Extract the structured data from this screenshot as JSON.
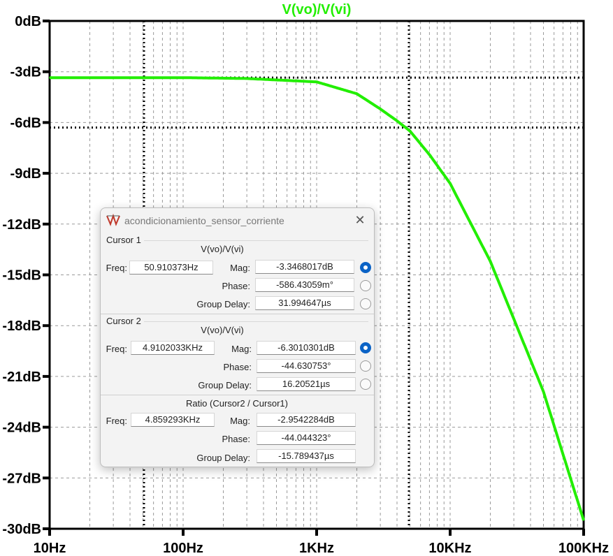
{
  "chart_data": {
    "type": "line",
    "title": "V(vo)/V(vi)",
    "x_scale": "log",
    "xlim": [
      10,
      100000
    ],
    "ylim": [
      -30,
      0
    ],
    "x_ticks": [
      10,
      100,
      1000,
      10000,
      100000
    ],
    "x_tick_labels": [
      "10Hz",
      "100Hz",
      "1KHz",
      "10KHz",
      "100KHz"
    ],
    "y_ticks": [
      0,
      -3,
      -6,
      -9,
      -12,
      -15,
      -18,
      -21,
      -24,
      -27,
      -30
    ],
    "y_tick_labels": [
      "0dB",
      "-3dB",
      "-6dB",
      "-9dB",
      "-12dB",
      "-15dB",
      "-18dB",
      "-21dB",
      "-24dB",
      "-27dB",
      "-30dB"
    ],
    "grid": true,
    "series": [
      {
        "name": "V(vo)/V(vi)",
        "color": "#22ee00",
        "x": [
          10,
          100,
          300,
          1000,
          2000,
          3000,
          4000,
          5000,
          7000,
          10000,
          20000,
          50000,
          100000
        ],
        "y": [
          -3.35,
          -3.35,
          -3.4,
          -3.6,
          -4.3,
          -5.2,
          -5.9,
          -6.5,
          -7.9,
          -9.6,
          -14.2,
          -21.9,
          -29.5
        ]
      }
    ],
    "cursors": [
      {
        "x": 50.91,
        "y": -3.35
      },
      {
        "x": 4910.2,
        "y": -6.3
      }
    ]
  },
  "dialog": {
    "title": "acondicionamiento_sensor_corriente",
    "close": "✕",
    "cursor1": {
      "label": "Cursor 1",
      "expr": "V(vo)/V(vi)",
      "freq_label": "Freq:",
      "freq": "50.910373Hz",
      "mag_label": "Mag:",
      "mag": "-3.3468017dB",
      "phase_label": "Phase:",
      "phase": "-586.43059m°",
      "gd_label": "Group Delay:",
      "gd": "31.994647µs"
    },
    "cursor2": {
      "label": "Cursor 2",
      "expr": "V(vo)/V(vi)",
      "freq_label": "Freq:",
      "freq": "4.9102033KHz",
      "mag_label": "Mag:",
      "mag": "-6.3010301dB",
      "phase_label": "Phase:",
      "phase": "-44.630753°",
      "gd_label": "Group Delay:",
      "gd": "16.20521µs"
    },
    "ratio": {
      "label": "Ratio (Cursor2 / Cursor1)",
      "freq_label": "Freq:",
      "freq": "4.859293KHz",
      "mag_label": "Mag:",
      "mag": "-2.9542284dB",
      "phase_label": "Phase:",
      "phase": "-44.044323°",
      "gd_label": "Group Delay:",
      "gd": "-15.789437µs"
    }
  }
}
